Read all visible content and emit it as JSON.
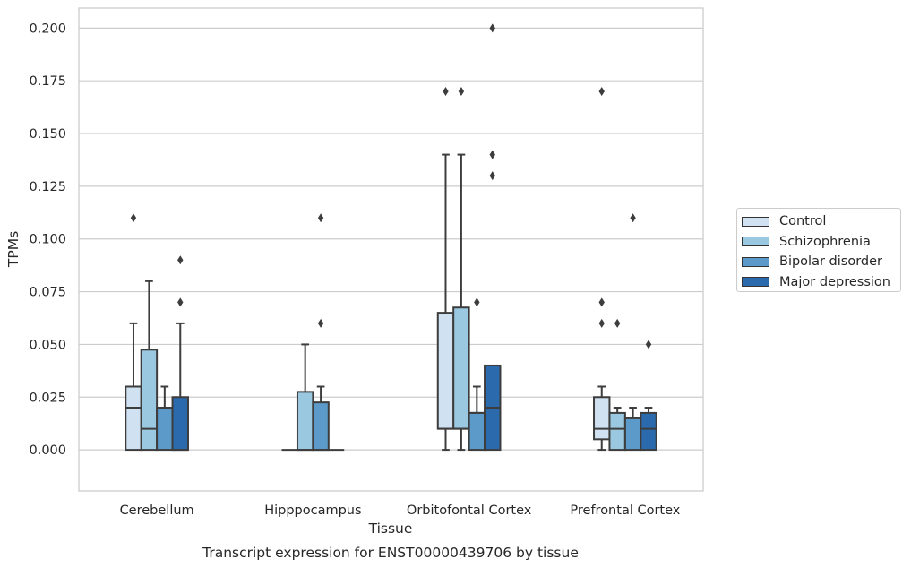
{
  "chart_data": {
    "type": "box",
    "title": "Transcript expression for ENST00000439706 by tissue",
    "xlabel": "Tissue",
    "ylabel": "TPMs",
    "ylim": [
      -0.0195,
      0.2095
    ],
    "yticks": [
      "0.000",
      "0.025",
      "0.050",
      "0.075",
      "0.100",
      "0.125",
      "0.150",
      "0.175",
      "0.200"
    ],
    "ytick_values": [
      0,
      0.025,
      0.05,
      0.075,
      0.1,
      0.125,
      0.15,
      0.175,
      0.2
    ],
    "grid": "horizontal",
    "legend_position": "right",
    "categories": [
      "Cerebellum",
      "Hipppocampus",
      "Orbitofontal Cortex",
      "Prefrontal Cortex"
    ],
    "series": [
      {
        "name": "Control",
        "color": "#d0e1f2",
        "boxes": [
          {
            "whislo": 0,
            "q1": 0,
            "med": 0.02,
            "q3": 0.03,
            "whishi": 0.06,
            "fliers": [
              0.11
            ]
          },
          {
            "whislo": 0,
            "q1": 0,
            "med": 0,
            "q3": 0,
            "whishi": 0,
            "fliers": []
          },
          {
            "whislo": 0,
            "q1": 0.01,
            "med": 0.01,
            "q3": 0.065,
            "whishi": 0.14,
            "fliers": [
              0.17
            ]
          },
          {
            "whislo": 0,
            "q1": 0.005,
            "med": 0.01,
            "q3": 0.025,
            "whishi": 0.03,
            "fliers": [
              0.06,
              0.07,
              0.17
            ]
          }
        ]
      },
      {
        "name": "Schizophrenia",
        "color": "#9ac8e0",
        "boxes": [
          {
            "whislo": 0,
            "q1": 0,
            "med": 0.01,
            "q3": 0.0475,
            "whishi": 0.08,
            "fliers": []
          },
          {
            "whislo": 0,
            "q1": 0,
            "med": 0,
            "q3": 0.0275,
            "whishi": 0.05,
            "fliers": []
          },
          {
            "whislo": 0,
            "q1": 0.01,
            "med": 0.01,
            "q3": 0.0675,
            "whishi": 0.14,
            "fliers": [
              0.17
            ]
          },
          {
            "whislo": 0,
            "q1": 0,
            "med": 0.01,
            "q3": 0.0175,
            "whishi": 0.02,
            "fliers": [
              0.06
            ]
          }
        ]
      },
      {
        "name": "Bipolar disorder",
        "color": "#5b9ac9",
        "boxes": [
          {
            "whislo": 0,
            "q1": 0,
            "med": 0.02,
            "q3": 0.02,
            "whishi": 0.03,
            "fliers": []
          },
          {
            "whislo": 0,
            "q1": 0,
            "med": 0,
            "q3": 0.0225,
            "whishi": 0.03,
            "fliers": [
              0.06,
              0.11
            ]
          },
          {
            "whislo": 0,
            "q1": 0,
            "med": 0.0175,
            "q3": 0.0175,
            "whishi": 0.03,
            "fliers": [
              0.07
            ]
          },
          {
            "whislo": 0,
            "q1": 0,
            "med": 0.015,
            "q3": 0.015,
            "whishi": 0.02,
            "fliers": [
              0.11
            ]
          }
        ]
      },
      {
        "name": "Major depression",
        "color": "#2a6aad",
        "boxes": [
          {
            "whislo": 0,
            "q1": 0,
            "med": 0,
            "q3": 0.025,
            "whishi": 0.06,
            "fliers": [
              0.07,
              0.09
            ]
          },
          {
            "whislo": 0,
            "q1": 0,
            "med": 0,
            "q3": 0,
            "whishi": 0,
            "fliers": []
          },
          {
            "whislo": 0,
            "q1": 0,
            "med": 0.02,
            "q3": 0.04,
            "whishi": 0.04,
            "fliers": [
              0.13,
              0.14,
              0.2
            ]
          },
          {
            "whislo": 0,
            "q1": 0,
            "med": 0.01,
            "q3": 0.0175,
            "whishi": 0.02,
            "fliers": [
              0.05
            ]
          }
        ]
      }
    ]
  }
}
